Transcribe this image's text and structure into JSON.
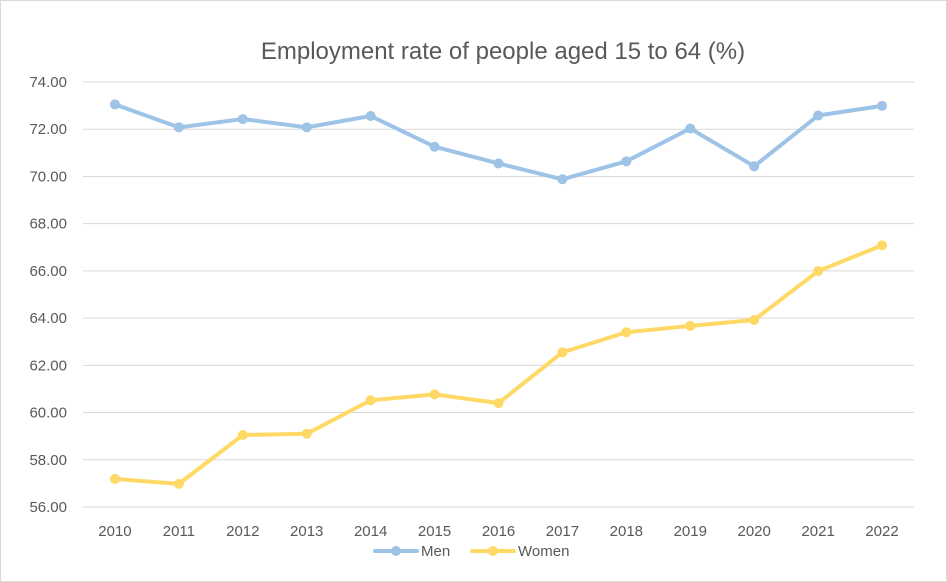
{
  "chart_data": {
    "type": "line",
    "title": "Employment rate of people aged 15 to 64 (%)",
    "xlabel": "",
    "ylabel": "",
    "categories": [
      "2010",
      "2011",
      "2012",
      "2013",
      "2014",
      "2015",
      "2016",
      "2017",
      "2018",
      "2019",
      "2020",
      "2021",
      "2022"
    ],
    "y_ticks": [
      "56.00",
      "58.00",
      "60.00",
      "62.00",
      "64.00",
      "66.00",
      "68.00",
      "70.00",
      "72.00",
      "74.00"
    ],
    "ylim": [
      56,
      74
    ],
    "grid": true,
    "legend_position": "bottom",
    "series": [
      {
        "name": "Men",
        "color": "#9dc3e6",
        "values": [
          73.05,
          72.08,
          72.43,
          72.08,
          72.56,
          71.26,
          70.55,
          69.88,
          70.64,
          72.03,
          70.43,
          72.58,
          72.99
        ]
      },
      {
        "name": "Women",
        "color": "#ffd966",
        "values": [
          57.19,
          56.98,
          59.05,
          59.1,
          60.52,
          60.77,
          60.4,
          62.55,
          63.4,
          63.67,
          63.92,
          65.99,
          67.08
        ]
      }
    ]
  }
}
